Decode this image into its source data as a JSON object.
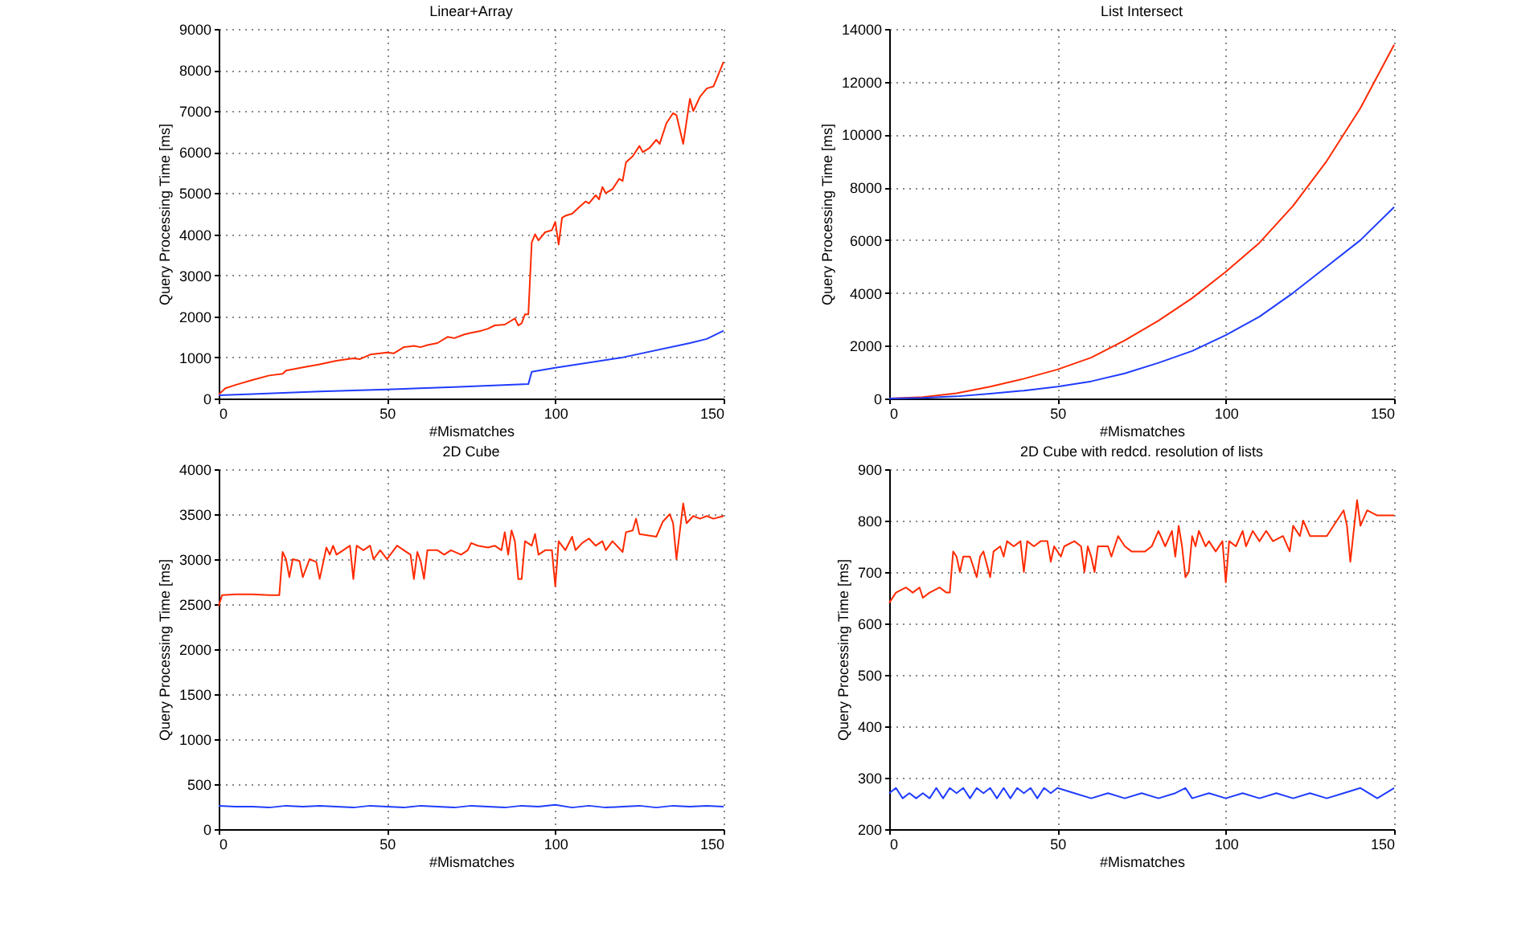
{
  "chart_data": [
    {
      "type": "line",
      "title": "Linear+Array",
      "xlabel": "#Mismatches",
      "ylabel": "Query Processing Time [ms]",
      "xlim": [
        0,
        150
      ],
      "xticks": [
        0,
        50,
        100,
        150
      ],
      "ylim": [
        0,
        9000
      ],
      "yticks": [
        0,
        1000,
        2000,
        3000,
        4000,
        5000,
        6000,
        7000,
        8000,
        9000
      ],
      "grid": true,
      "line_style": "solid",
      "series": [
        {
          "color": "#ff2a00",
          "x": [
            0,
            2,
            5,
            10,
            15,
            19,
            20,
            25,
            30,
            35,
            40,
            42,
            45,
            50,
            52,
            55,
            58,
            60,
            62,
            65,
            68,
            70,
            73,
            75,
            78,
            80,
            82,
            85,
            88,
            89,
            90,
            91,
            92,
            93,
            94,
            95,
            97,
            99,
            100,
            101,
            102,
            103,
            105,
            107,
            109,
            110,
            112,
            113,
            114,
            115,
            117,
            119,
            120,
            121,
            123,
            125,
            126,
            128,
            130,
            131,
            133,
            135,
            136,
            138,
            140,
            141,
            143,
            145,
            147,
            148,
            150
          ],
          "values": [
            100,
            250,
            330,
            450,
            560,
            600,
            680,
            760,
            830,
            920,
            980,
            960,
            1070,
            1120,
            1100,
            1250,
            1280,
            1250,
            1300,
            1350,
            1500,
            1470,
            1560,
            1600,
            1650,
            1700,
            1780,
            1800,
            1950,
            1780,
            1830,
            2050,
            2050,
            3800,
            4000,
            3850,
            4050,
            4100,
            4300,
            3750,
            4400,
            4450,
            4500,
            4650,
            4800,
            4750,
            4950,
            4850,
            5150,
            5000,
            5100,
            5350,
            5300,
            5750,
            5900,
            6150,
            6000,
            6100,
            6300,
            6200,
            6700,
            6950,
            6900,
            6200,
            7300,
            7000,
            7350,
            7550,
            7600,
            7800,
            8200
          ]
        },
        {
          "color": "#1f3cff",
          "x": [
            0,
            10,
            30,
            50,
            70,
            92,
            93,
            100,
            120,
            140,
            145,
            150
          ],
          "values": [
            80,
            110,
            170,
            220,
            280,
            350,
            650,
            750,
            1000,
            1350,
            1450,
            1650
          ]
        }
      ]
    },
    {
      "type": "line",
      "title": "List Intersect",
      "xlabel": "#Mismatches",
      "ylabel": "Query Processing Time [ms]",
      "xlim": [
        0,
        150
      ],
      "xticks": [
        0,
        50,
        100,
        150
      ],
      "ylim": [
        0,
        14000
      ],
      "yticks": [
        0,
        2000,
        4000,
        6000,
        8000,
        10000,
        12000,
        14000
      ],
      "grid": true,
      "line_style": "solid",
      "series": [
        {
          "color": "#ff2a00",
          "x": [
            0,
            10,
            20,
            30,
            40,
            50,
            60,
            70,
            80,
            90,
            100,
            110,
            120,
            130,
            140,
            150
          ],
          "values": [
            0,
            50,
            200,
            450,
            750,
            1100,
            1550,
            2200,
            2950,
            3800,
            4800,
            5900,
            7300,
            9000,
            11000,
            13400
          ]
        },
        {
          "color": "#1f3cff",
          "x": [
            0,
            10,
            20,
            30,
            40,
            50,
            60,
            70,
            80,
            90,
            100,
            110,
            120,
            130,
            140,
            150
          ],
          "values": [
            0,
            20,
            80,
            180,
            300,
            450,
            650,
            950,
            1350,
            1800,
            2400,
            3100,
            4000,
            5000,
            6000,
            7250
          ]
        }
      ]
    },
    {
      "type": "line",
      "title": "2D Cube",
      "xlabel": "#Mismatches",
      "ylabel": "Query Processing Time [ms]",
      "xlim": [
        0,
        150
      ],
      "xticks": [
        0,
        50,
        100,
        150
      ],
      "ylim": [
        0,
        4000
      ],
      "yticks": [
        0,
        500,
        1000,
        1500,
        2000,
        2500,
        3000,
        3500,
        4000
      ],
      "grid": true,
      "line_style": "solid",
      "series": [
        {
          "color": "#ff2a00",
          "x": [
            0,
            1,
            5,
            10,
            15,
            18,
            19,
            20,
            21,
            22,
            24,
            25,
            27,
            29,
            30,
            32,
            33,
            34,
            35,
            37,
            39,
            40,
            41,
            43,
            45,
            46,
            48,
            50,
            51,
            53,
            55,
            57,
            58,
            59,
            60,
            61,
            62,
            65,
            67,
            69,
            72,
            74,
            75,
            77,
            80,
            82,
            84,
            85,
            86,
            87,
            88,
            89,
            90,
            91,
            93,
            94,
            95,
            97,
            99,
            100,
            101,
            103,
            105,
            106,
            108,
            110,
            112,
            114,
            115,
            117,
            120,
            121,
            123,
            124,
            125,
            130,
            132,
            134,
            135,
            136,
            138,
            139,
            141,
            143,
            145,
            147,
            150
          ],
          "values": [
            2480,
            2600,
            2610,
            2610,
            2600,
            2600,
            3080,
            3000,
            2800,
            3000,
            2980,
            2800,
            3000,
            2970,
            2780,
            3130,
            3050,
            3150,
            3050,
            3100,
            3150,
            2780,
            3150,
            3100,
            3150,
            3000,
            3100,
            3000,
            3050,
            3150,
            3100,
            3050,
            2780,
            3080,
            2980,
            2780,
            3100,
            3100,
            3050,
            3100,
            3050,
            3100,
            3180,
            3150,
            3130,
            3150,
            3100,
            3300,
            3050,
            3320,
            3200,
            2780,
            2780,
            3200,
            3150,
            3280,
            3050,
            3100,
            3100,
            2700,
            3200,
            3100,
            3250,
            3100,
            3180,
            3230,
            3150,
            3200,
            3100,
            3200,
            3080,
            3300,
            3320,
            3450,
            3280,
            3250,
            3420,
            3500,
            3400,
            3000,
            3620,
            3400,
            3480,
            3450,
            3480,
            3450,
            3480
          ]
        },
        {
          "color": "#1f3cff",
          "x": [
            0,
            5,
            10,
            15,
            20,
            25,
            30,
            35,
            40,
            45,
            50,
            55,
            60,
            65,
            70,
            75,
            80,
            85,
            90,
            95,
            100,
            105,
            110,
            115,
            120,
            125,
            130,
            135,
            140,
            145,
            150
          ],
          "values": [
            260,
            250,
            250,
            240,
            260,
            250,
            260,
            250,
            240,
            260,
            250,
            240,
            260,
            250,
            240,
            260,
            250,
            240,
            260,
            250,
            270,
            240,
            260,
            240,
            250,
            260,
            240,
            260,
            250,
            260,
            250
          ]
        }
      ]
    },
    {
      "type": "line",
      "title": "2D Cube with redcd. resolution of lists",
      "xlabel": "#Mismatches",
      "ylabel": "Query Processing Time [ms]",
      "xlim": [
        0,
        150
      ],
      "xticks": [
        0,
        50,
        100,
        150
      ],
      "ylim": [
        200,
        900
      ],
      "yticks": [
        200,
        300,
        400,
        500,
        600,
        700,
        800,
        900
      ],
      "grid": true,
      "line_style": "solid",
      "series": [
        {
          "color": "#ff2a00",
          "x": [
            0,
            2,
            5,
            7,
            9,
            10,
            12,
            15,
            17,
            18,
            19,
            20,
            21,
            22,
            24,
            26,
            27,
            28,
            30,
            31,
            33,
            34,
            35,
            37,
            39,
            40,
            41,
            43,
            45,
            47,
            48,
            49,
            51,
            52,
            55,
            57,
            58,
            59,
            60,
            61,
            62,
            65,
            66,
            68,
            70,
            72,
            76,
            78,
            80,
            82,
            84,
            85,
            86,
            87,
            88,
            89,
            90,
            91,
            92,
            94,
            95,
            97,
            99,
            100,
            101,
            103,
            105,
            106,
            108,
            110,
            112,
            114,
            117,
            119,
            120,
            122,
            123,
            125,
            128,
            130,
            133,
            135,
            136,
            137,
            139,
            140,
            142,
            145,
            150
          ],
          "values": [
            640,
            660,
            670,
            660,
            670,
            650,
            660,
            670,
            660,
            660,
            740,
            730,
            700,
            730,
            730,
            690,
            730,
            740,
            690,
            740,
            750,
            730,
            760,
            750,
            760,
            700,
            760,
            750,
            760,
            760,
            720,
            750,
            730,
            750,
            760,
            750,
            700,
            750,
            730,
            700,
            750,
            750,
            730,
            770,
            750,
            740,
            740,
            750,
            780,
            750,
            780,
            730,
            790,
            750,
            690,
            700,
            770,
            750,
            780,
            750,
            760,
            740,
            760,
            680,
            760,
            750,
            780,
            750,
            780,
            760,
            780,
            760,
            770,
            740,
            790,
            770,
            800,
            770,
            770,
            770,
            800,
            820,
            790,
            720,
            840,
            790,
            820,
            810,
            810
          ]
        },
        {
          "color": "#1f3cff",
          "x": [
            0,
            2,
            4,
            6,
            8,
            10,
            12,
            14,
            16,
            18,
            20,
            22,
            24,
            26,
            28,
            30,
            32,
            34,
            36,
            38,
            40,
            42,
            44,
            46,
            48,
            50,
            55,
            60,
            65,
            70,
            75,
            80,
            85,
            88,
            90,
            95,
            100,
            105,
            110,
            115,
            120,
            125,
            130,
            135,
            140,
            145,
            150
          ],
          "values": [
            270,
            280,
            260,
            270,
            260,
            270,
            260,
            280,
            260,
            280,
            270,
            280,
            260,
            280,
            270,
            280,
            260,
            280,
            260,
            280,
            270,
            280,
            260,
            280,
            270,
            280,
            270,
            260,
            270,
            260,
            270,
            260,
            270,
            280,
            260,
            270,
            260,
            270,
            260,
            270,
            260,
            270,
            260,
            270,
            280,
            260,
            280
          ]
        }
      ]
    }
  ]
}
